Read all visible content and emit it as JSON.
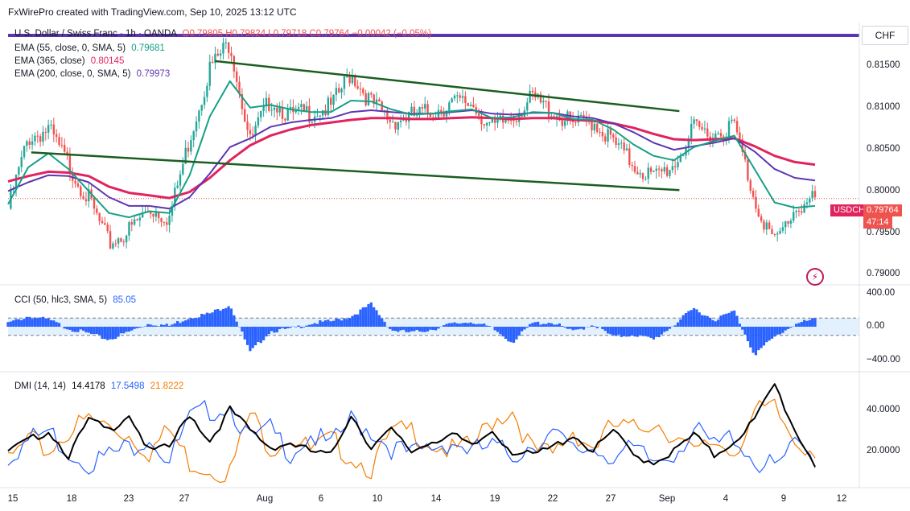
{
  "header": {
    "text": "FxWirePro created with TradingView.com, Sep 10, 2025 13:12 UTC"
  },
  "symbol_legend": {
    "title": "U.S. Dollar / Swiss Franc · 1h · OANDA",
    "ohlc": "O0.79805  H0.79824  L0.79718  C0.79764  −0.00042 (−0.05%)"
  },
  "ema_legend": [
    {
      "label": "EMA (55, close, 0, SMA, 5)",
      "value": "0.79681",
      "color": "#16a085"
    },
    {
      "label": "EMA (365, close)",
      "value": "0.80145",
      "color": "#e0245e"
    },
    {
      "label": "EMA (200, close, 0, SMA, 5)",
      "value": "0.79973",
      "color": "#5e35b1"
    }
  ],
  "currency_button": "CHF",
  "price_axis": [
    "0.81500",
    "0.81000",
    "0.80500",
    "0.80000",
    "0.79500",
    "0.79000"
  ],
  "price_badge": {
    "symbol": "USDCHF",
    "price": "0.79764",
    "countdown": "47:14"
  },
  "cci_legend": {
    "label": "CCI (50, hlc3, SMA, 5)",
    "value": "85.05"
  },
  "cci_axis": [
    "400.00",
    "0.00",
    "−400.00"
  ],
  "dmi_legend": {
    "label": "DMI (14, 14)",
    "adx": "14.4178",
    "plus_di": "17.5498",
    "minus_di": "21.8222"
  },
  "dmi_axis": [
    "40.0000",
    "20.0000"
  ],
  "time_axis": [
    "15",
    "18",
    "23",
    "27",
    "Aug",
    "6",
    "10",
    "14",
    "19",
    "22",
    "27",
    "Sep",
    "4",
    "9",
    "12"
  ],
  "colors": {
    "up": "#26a69a",
    "down": "#ef5350",
    "ema55": "#16a085",
    "ema365": "#e0245e",
    "ema200": "#5e35b1",
    "channel": "#1b5e20",
    "cci": "#2962ff",
    "adx": "#000000",
    "plus_di": "#2962ff",
    "minus_di": "#f57c00",
    "top_line": "#5e35b1"
  },
  "chart_data": {
    "type": "candlestick",
    "title": "U.S. Dollar / Swiss Franc · 1h · OANDA",
    "ylim": [
      0.788,
      0.8175
    ],
    "x_days": [
      15,
      16,
      17,
      18,
      21,
      22,
      23,
      24,
      25,
      27,
      28,
      29,
      30,
      31,
      32,
      33,
      34,
      35,
      36,
      37,
      38,
      39,
      40,
      41,
      42,
      43,
      44,
      45,
      46,
      47,
      48,
      49,
      50,
      51,
      52,
      53,
      54,
      55,
      56,
      57,
      58
    ],
    "close_path": [
      0.7965,
      0.8045,
      0.8055,
      0.8015,
      0.7975,
      0.7925,
      0.794,
      0.7965,
      0.7955,
      0.8045,
      0.8125,
      0.8155,
      0.804,
      0.809,
      0.807,
      0.8075,
      0.808,
      0.812,
      0.8085,
      0.8065,
      0.807,
      0.8075,
      0.8085,
      0.8085,
      0.8055,
      0.807,
      0.809,
      0.8075,
      0.806,
      0.8065,
      0.804,
      0.8015,
      0.8,
      0.8015,
      0.8055,
      0.805,
      0.806,
      0.7975,
      0.7925,
      0.7965,
      0.7976
    ],
    "ema55": [
      0.797,
      0.8012,
      0.8028,
      0.801,
      0.7985,
      0.796,
      0.7955,
      0.7962,
      0.796,
      0.8003,
      0.807,
      0.811,
      0.808,
      0.8083,
      0.8078,
      0.8075,
      0.8075,
      0.8088,
      0.8087,
      0.8078,
      0.8072,
      0.8073,
      0.8076,
      0.8078,
      0.8068,
      0.8069,
      0.8075,
      0.8074,
      0.8067,
      0.8066,
      0.8055,
      0.8038,
      0.8025,
      0.802,
      0.8035,
      0.8042,
      0.8048,
      0.801,
      0.7972,
      0.7966,
      0.7968
    ],
    "ema365": [
      0.7996,
      0.8002,
      0.8007,
      0.8006,
      0.8002,
      0.799,
      0.7983,
      0.798,
      0.7977,
      0.7984,
      0.8,
      0.802,
      0.8037,
      0.8048,
      0.8055,
      0.806,
      0.8063,
      0.8066,
      0.8068,
      0.8068,
      0.8067,
      0.8067,
      0.8068,
      0.8069,
      0.8068,
      0.8067,
      0.8068,
      0.8068,
      0.8066,
      0.8065,
      0.8062,
      0.8057,
      0.805,
      0.8044,
      0.8043,
      0.8044,
      0.8045,
      0.8036,
      0.8025,
      0.8018,
      0.8015
    ],
    "ema200": [
      0.7985,
      0.7995,
      0.8003,
      0.8002,
      0.7995,
      0.7978,
      0.7968,
      0.7968,
      0.7965,
      0.7978,
      0.8005,
      0.8035,
      0.8045,
      0.8058,
      0.8063,
      0.8066,
      0.8068,
      0.8075,
      0.8077,
      0.8075,
      0.8073,
      0.8073,
      0.8075,
      0.8077,
      0.8073,
      0.8072,
      0.8074,
      0.8074,
      0.807,
      0.8068,
      0.8062,
      0.8052,
      0.804,
      0.8032,
      0.8036,
      0.804,
      0.8045,
      0.803,
      0.801,
      0.8,
      0.7997
    ],
    "channel_upper": [
      [
        10.7,
        0.8133
      ],
      [
        34.7,
        0.8076
      ]
    ],
    "channel_lower": [
      [
        1.2,
        0.8029
      ],
      [
        34.7,
        0.7986
      ]
    ],
    "cci": [
      40,
      120,
      80,
      -20,
      -80,
      -150,
      -60,
      40,
      10,
      110,
      150,
      260,
      -300,
      -50,
      -30,
      40,
      60,
      120,
      260,
      -40,
      -70,
      -30,
      30,
      60,
      -20,
      -180,
      40,
      50,
      -60,
      30,
      -120,
      -90,
      -150,
      20,
      210,
      80,
      180,
      -320,
      -120,
      30,
      85
    ],
    "dmi_adx": [
      20,
      25,
      30,
      18,
      35,
      30,
      38,
      20,
      22,
      38,
      25,
      40,
      30,
      22,
      24,
      20,
      18,
      38,
      22,
      30,
      20,
      25,
      28,
      22,
      30,
      20,
      18,
      22,
      28,
      20,
      30,
      18,
      15,
      20,
      28,
      18,
      25,
      35,
      52,
      30,
      14
    ],
    "dmi_plus": [
      18,
      25,
      30,
      20,
      15,
      18,
      22,
      28,
      15,
      35,
      40,
      42,
      25,
      30,
      20,
      28,
      22,
      35,
      30,
      22,
      18,
      22,
      25,
      20,
      22,
      18,
      24,
      28,
      20,
      22,
      18,
      20,
      15,
      20,
      30,
      22,
      28,
      15,
      12,
      22,
      17.5
    ],
    "dmi_minus": [
      15,
      25,
      20,
      30,
      35,
      32,
      28,
      20,
      30,
      15,
      12,
      10,
      38,
      22,
      28,
      20,
      25,
      18,
      12,
      28,
      30,
      24,
      20,
      22,
      35,
      40,
      20,
      18,
      30,
      22,
      32,
      30,
      35,
      28,
      18,
      25,
      20,
      38,
      40,
      25,
      21.8
    ]
  }
}
